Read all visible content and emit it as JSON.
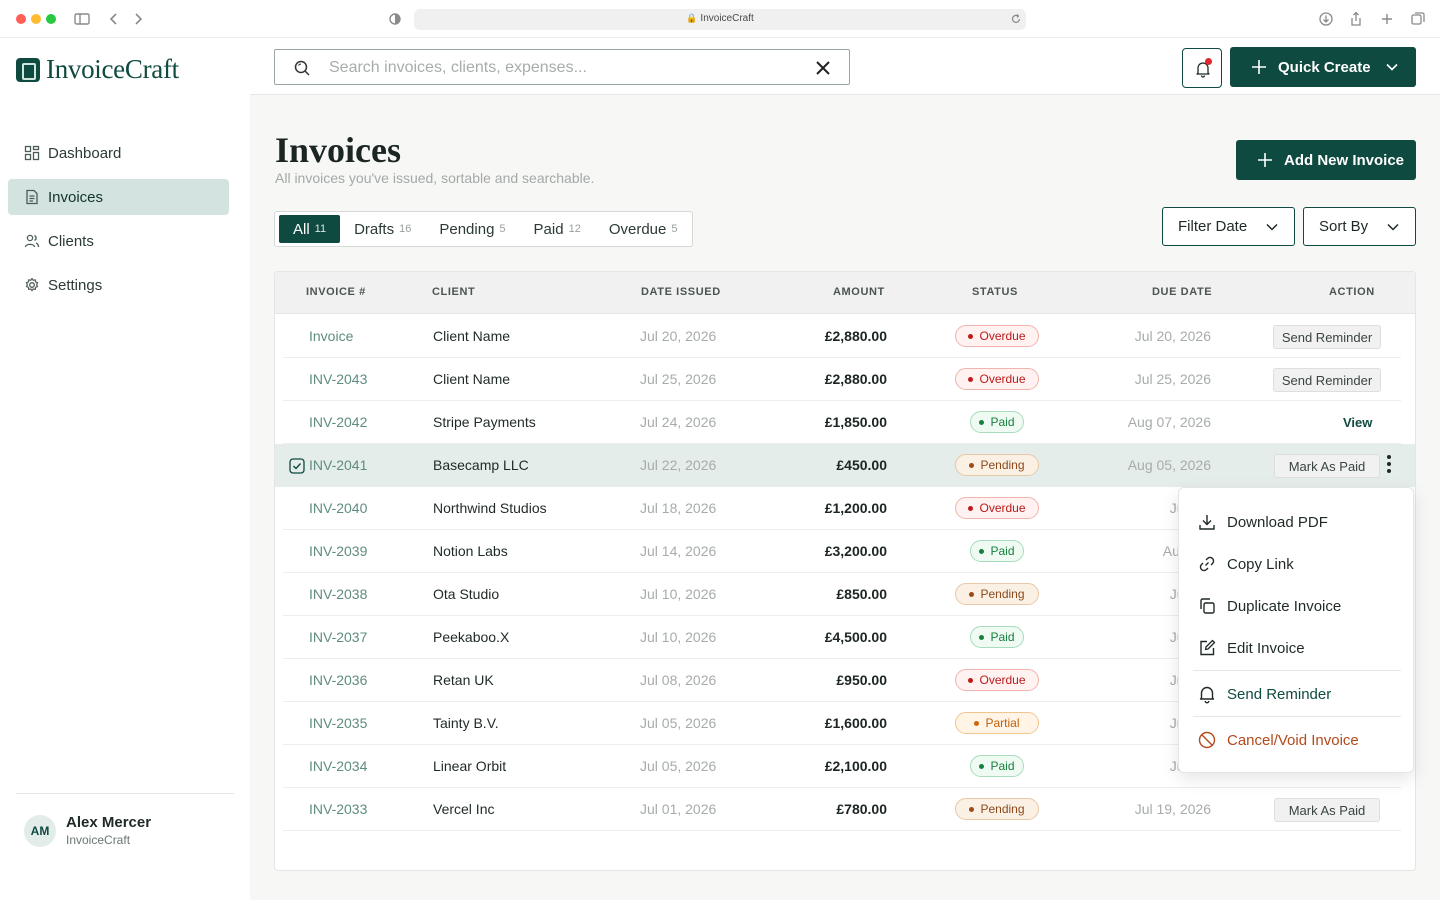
{
  "browser": {
    "url": "InvoiceCraft"
  },
  "brand": {
    "name": "InvoiceCraft"
  },
  "nav": {
    "items": [
      {
        "label": "Dashboard",
        "icon": "dashboard-icon"
      },
      {
        "label": "Invoices",
        "icon": "document-icon",
        "active": true
      },
      {
        "label": "Clients",
        "icon": "users-icon"
      },
      {
        "label": "Settings",
        "icon": "gear-icon"
      }
    ]
  },
  "user": {
    "initials": "AM",
    "name": "Alex Mercer",
    "org": "InvoiceCraft"
  },
  "search": {
    "placeholder": "Search invoices, clients, expenses..."
  },
  "topbar": {
    "quick_create": "Quick Create"
  },
  "page": {
    "title": "Invoices",
    "subtitle": "All invoices you've issued, sortable and searchable.",
    "add_button": "Add New Invoice"
  },
  "tabs": [
    {
      "label": "All",
      "count": "11",
      "active": true
    },
    {
      "label": "Drafts",
      "count": "16"
    },
    {
      "label": "Pending",
      "count": "5"
    },
    {
      "label": "Paid",
      "count": "12"
    },
    {
      "label": "Overdue",
      "count": "5"
    }
  ],
  "filters": {
    "filter_date": "Filter Date",
    "sort_by": "Sort By"
  },
  "table": {
    "headers": {
      "invoice": "INVOICE #",
      "client": "CLIENT",
      "date_issued": "DATE ISSUED",
      "amount": "AMOUNT",
      "status": "STATUS",
      "due_date": "DUE DATE",
      "action": "ACTION"
    },
    "rows": [
      {
        "invoice": "Invoice",
        "client": "Client Name",
        "issued": "Jul 20, 2026",
        "amount": "£2,880.00",
        "status": "Overdue",
        "due": "Jul 20, 2026",
        "action": "Send Reminder"
      },
      {
        "invoice": "INV-2043",
        "client": "Client Name",
        "issued": "Jul 25, 2026",
        "amount": "£2,880.00",
        "status": "Overdue",
        "due": "Jul 25, 2026",
        "action": "Send Reminder"
      },
      {
        "invoice": "INV-2042",
        "client": "Stripe Payments",
        "issued": "Jul 24, 2026",
        "amount": "£1,850.00",
        "status": "Paid",
        "due": "Aug 07, 2026",
        "action": "View"
      },
      {
        "invoice": "INV-2041",
        "client": "Basecamp LLC",
        "issued": "Jul 22, 2026",
        "amount": "£450.00",
        "status": "Pending",
        "due": "Aug 05, 2026",
        "action": "Mark As Paid",
        "selected": true
      },
      {
        "invoice": "INV-2040",
        "client": "Northwind Studios",
        "issued": "Jul 18, 2026",
        "amount": "£1,200.00",
        "status": "Overdue",
        "due": "Jul 20,"
      },
      {
        "invoice": "INV-2039",
        "client": "Notion Labs",
        "issued": "Jul 14, 2026",
        "amount": "£3,200.00",
        "status": "Paid",
        "due": "Aug 01,"
      },
      {
        "invoice": "INV-2038",
        "client": "Ota Studio",
        "issued": "Jul 10, 2026",
        "amount": "£850.00",
        "status": "Pending",
        "due": "Jul 29,"
      },
      {
        "invoice": "INV-2037",
        "client": "Peekaboo.X",
        "issued": "Jul 10, 2026",
        "amount": "£4,500.00",
        "status": "Paid",
        "due": "Jul 28,"
      },
      {
        "invoice": "INV-2036",
        "client": "Retan UK",
        "issued": "Jul 08, 2026",
        "amount": "£950.00",
        "status": "Overdue",
        "due": "Jul 12,"
      },
      {
        "invoice": "INV-2035",
        "client": "Tainty B.V.",
        "issued": "Jul 05, 2026",
        "amount": "£1,600.00",
        "status": "Partial",
        "due": "Jul 24,"
      },
      {
        "invoice": "INV-2034",
        "client": "Linear Orbit",
        "issued": "Jul 05, 2026",
        "amount": "£2,100.00",
        "status": "Paid",
        "due": "Jul 22,"
      },
      {
        "invoice": "INV-2033",
        "client": "Vercel Inc",
        "issued": "Jul 01, 2026",
        "amount": "£780.00",
        "status": "Pending",
        "due": "Jul 19, 2026",
        "action": "Mark As Paid"
      }
    ]
  },
  "context_menu": {
    "items": [
      {
        "label": "Download PDF",
        "icon": "download-icon"
      },
      {
        "label": "Copy Link",
        "icon": "link-icon"
      },
      {
        "label": "Duplicate Invoice",
        "icon": "duplicate-icon"
      },
      {
        "label": "Edit Invoice",
        "icon": "edit-icon"
      },
      {
        "label": "Send Reminder",
        "icon": "bell-icon"
      },
      {
        "label": "Cancel/Void Invoice",
        "icon": "cancel-icon"
      }
    ]
  },
  "colors": {
    "brand": "#0f4a40",
    "selected_row": "#e4ede9",
    "overdue": "#b91c1c",
    "paid": "#15803d",
    "pending": "#8a4a1b",
    "partial": "#c2610d"
  }
}
